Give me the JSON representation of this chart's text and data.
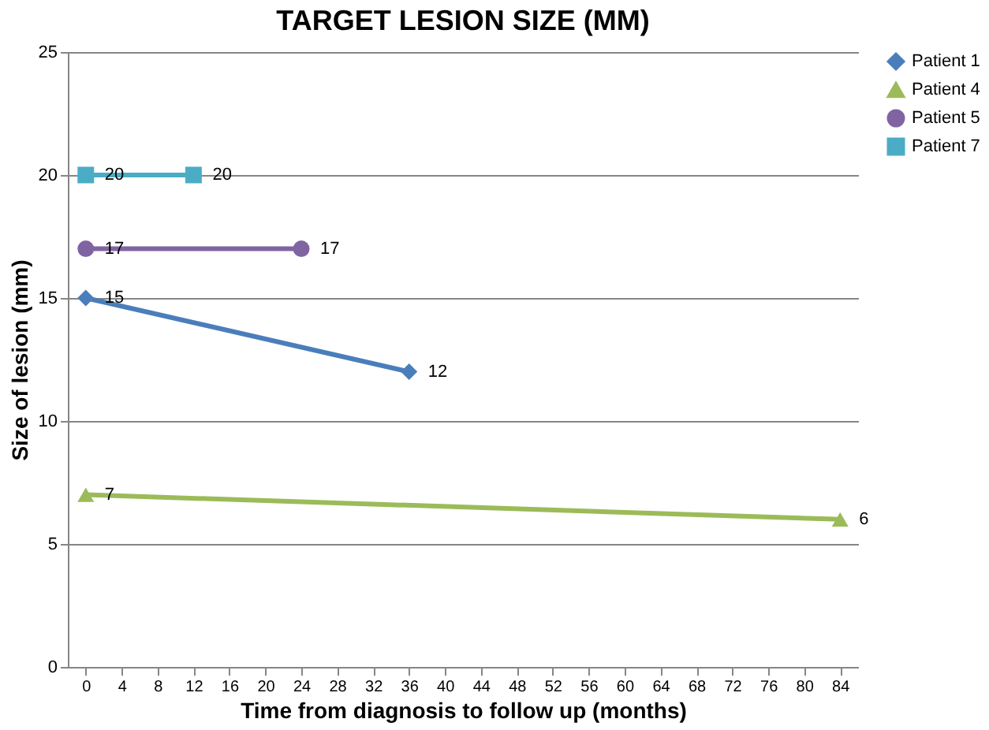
{
  "chart_data": {
    "type": "line",
    "title": "TARGET LESION SIZE (MM)",
    "xlabel": "Time from diagnosis to follow up (months)",
    "ylabel": "Size of lesion (mm)",
    "series": [
      {
        "name": "Patient 1",
        "color": "#4a7ebb",
        "marker": "diamond",
        "x": [
          0,
          36
        ],
        "values": [
          15,
          12
        ]
      },
      {
        "name": "Patient 4",
        "color": "#9bbb59",
        "marker": "triangle",
        "x": [
          0,
          84
        ],
        "values": [
          7,
          6
        ]
      },
      {
        "name": "Patient 5",
        "color": "#8064a2",
        "marker": "circle",
        "x": [
          0,
          24
        ],
        "values": [
          17,
          17
        ]
      },
      {
        "name": "Patient 7",
        "color": "#4bacc6",
        "marker": "square",
        "x": [
          0,
          12
        ],
        "values": [
          20,
          20
        ]
      }
    ],
    "xlim": [
      -2,
      86
    ],
    "xticks": [
      0,
      4,
      8,
      12,
      16,
      20,
      24,
      28,
      32,
      36,
      40,
      44,
      48,
      52,
      56,
      60,
      64,
      68,
      72,
      76,
      80,
      84
    ],
    "ylim": [
      0,
      25
    ],
    "yticks": [
      0,
      5,
      10,
      15,
      20,
      25
    ],
    "grid": "y",
    "legend": "right",
    "data_labels": true,
    "line_style": "solid"
  }
}
